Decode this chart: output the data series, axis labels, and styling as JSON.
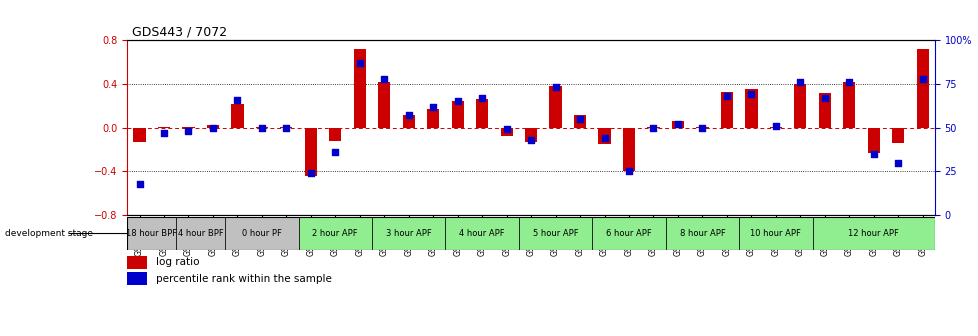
{
  "title": "GDS443 / 7072",
  "samples": [
    "GSM4585",
    "GSM4586",
    "GSM4587",
    "GSM4588",
    "GSM4589",
    "GSM4590",
    "GSM4591",
    "GSM4592",
    "GSM4593",
    "GSM4594",
    "GSM4595",
    "GSM4596",
    "GSM4597",
    "GSM4598",
    "GSM4599",
    "GSM4600",
    "GSM4601",
    "GSM4602",
    "GSM4603",
    "GSM4604",
    "GSM4605",
    "GSM4606",
    "GSM4607",
    "GSM4608",
    "GSM4609",
    "GSM4610",
    "GSM4611",
    "GSM4612",
    "GSM4613",
    "GSM4614",
    "GSM4615",
    "GSM4616",
    "GSM4617"
  ],
  "log_ratio": [
    -0.13,
    0.01,
    0.01,
    0.02,
    0.22,
    0.01,
    0.01,
    -0.44,
    -0.12,
    0.72,
    0.42,
    0.12,
    0.17,
    0.24,
    0.26,
    -0.08,
    -0.13,
    0.38,
    0.12,
    -0.15,
    -0.4,
    0.01,
    0.06,
    0.01,
    0.33,
    0.35,
    0.01,
    0.4,
    0.32,
    0.42,
    -0.23,
    -0.14,
    0.72
  ],
  "percentile": [
    18,
    47,
    48,
    50,
    66,
    50,
    50,
    24,
    36,
    87,
    78,
    57,
    62,
    65,
    67,
    49,
    43,
    73,
    55,
    44,
    25,
    50,
    52,
    50,
    68,
    69,
    51,
    76,
    67,
    76,
    35,
    30,
    78
  ],
  "stages": [
    {
      "label": "18 hour BPF",
      "start": 0,
      "end": 2,
      "color": "#c0c0c0"
    },
    {
      "label": "4 hour BPF",
      "start": 2,
      "end": 4,
      "color": "#c0c0c0"
    },
    {
      "label": "0 hour PF",
      "start": 4,
      "end": 7,
      "color": "#c0c0c0"
    },
    {
      "label": "2 hour APF",
      "start": 7,
      "end": 10,
      "color": "#90ee90"
    },
    {
      "label": "3 hour APF",
      "start": 10,
      "end": 13,
      "color": "#90ee90"
    },
    {
      "label": "4 hour APF",
      "start": 13,
      "end": 16,
      "color": "#90ee90"
    },
    {
      "label": "5 hour APF",
      "start": 16,
      "end": 19,
      "color": "#90ee90"
    },
    {
      "label": "6 hour APF",
      "start": 19,
      "end": 22,
      "color": "#90ee90"
    },
    {
      "label": "8 hour APF",
      "start": 22,
      "end": 25,
      "color": "#90ee90"
    },
    {
      "label": "10 hour APF",
      "start": 25,
      "end": 28,
      "color": "#90ee90"
    },
    {
      "label": "12 hour APF",
      "start": 28,
      "end": 33,
      "color": "#90ee90"
    }
  ],
  "bar_color": "#cc0000",
  "dot_color": "#0000cc",
  "ylim_left": [
    -0.8,
    0.8
  ],
  "ylim_right": [
    0,
    100
  ],
  "yticks_left": [
    -0.8,
    -0.4,
    0.0,
    0.4,
    0.8
  ],
  "yticks_right": [
    0,
    25,
    50,
    75,
    100
  ],
  "yticklabels_right": [
    "0",
    "25",
    "50",
    "75",
    "100%"
  ],
  "dotted_vals": [
    0.4,
    -0.4
  ],
  "legend_items": [
    "log ratio",
    "percentile rank within the sample"
  ],
  "dev_stage_label": "development stage"
}
